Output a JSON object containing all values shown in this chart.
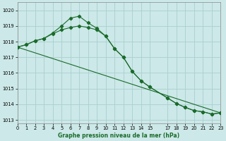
{
  "title": "Graphe pression niveau de la mer (hPa)",
  "bg_color": "#cce8e8",
  "grid_color": "#aacece",
  "line_color": "#1a6b2a",
  "series1_x": [
    0,
    1,
    2,
    3,
    4,
    5,
    6,
    7,
    8,
    9,
    10,
    11,
    12,
    13,
    14,
    15,
    17,
    18,
    19,
    20,
    21,
    22,
    23
  ],
  "series1_y": [
    1017.65,
    1017.8,
    1018.05,
    1018.2,
    1018.55,
    1019.0,
    1019.5,
    1019.62,
    1019.2,
    1018.85,
    1018.35,
    1017.55,
    1017.0,
    1016.1,
    1015.5,
    1015.1,
    1014.4,
    1014.05,
    1013.8,
    1013.6,
    1013.52,
    1013.38,
    1013.45
  ],
  "series2_x": [
    0,
    1,
    2,
    3,
    4,
    5,
    6,
    7,
    8,
    9,
    10,
    11,
    12,
    13,
    14,
    15,
    17,
    18,
    19,
    20,
    21,
    22,
    23
  ],
  "series2_y": [
    1017.65,
    1017.8,
    1018.05,
    1018.2,
    1018.5,
    1018.75,
    1018.9,
    1019.0,
    1018.9,
    1018.75,
    1018.35,
    1017.55,
    1017.0,
    1016.1,
    1015.5,
    1015.1,
    1014.4,
    1014.05,
    1013.8,
    1013.6,
    1013.52,
    1013.38,
    1013.45
  ],
  "series3_x": [
    0,
    23
  ],
  "series3_y": [
    1017.65,
    1013.45
  ],
  "xlim": [
    0,
    23
  ],
  "ylim": [
    1012.8,
    1020.5
  ],
  "yticks": [
    1013,
    1014,
    1015,
    1016,
    1017,
    1018,
    1019,
    1020
  ],
  "xticks": [
    0,
    1,
    2,
    3,
    4,
    5,
    6,
    7,
    8,
    9,
    10,
    11,
    12,
    13,
    14,
    15,
    17,
    18,
    19,
    20,
    21,
    22,
    23
  ],
  "xlabel_fontsize": 5.5,
  "tick_fontsize": 4.8,
  "linewidth": 0.8,
  "markersize": 2.2
}
